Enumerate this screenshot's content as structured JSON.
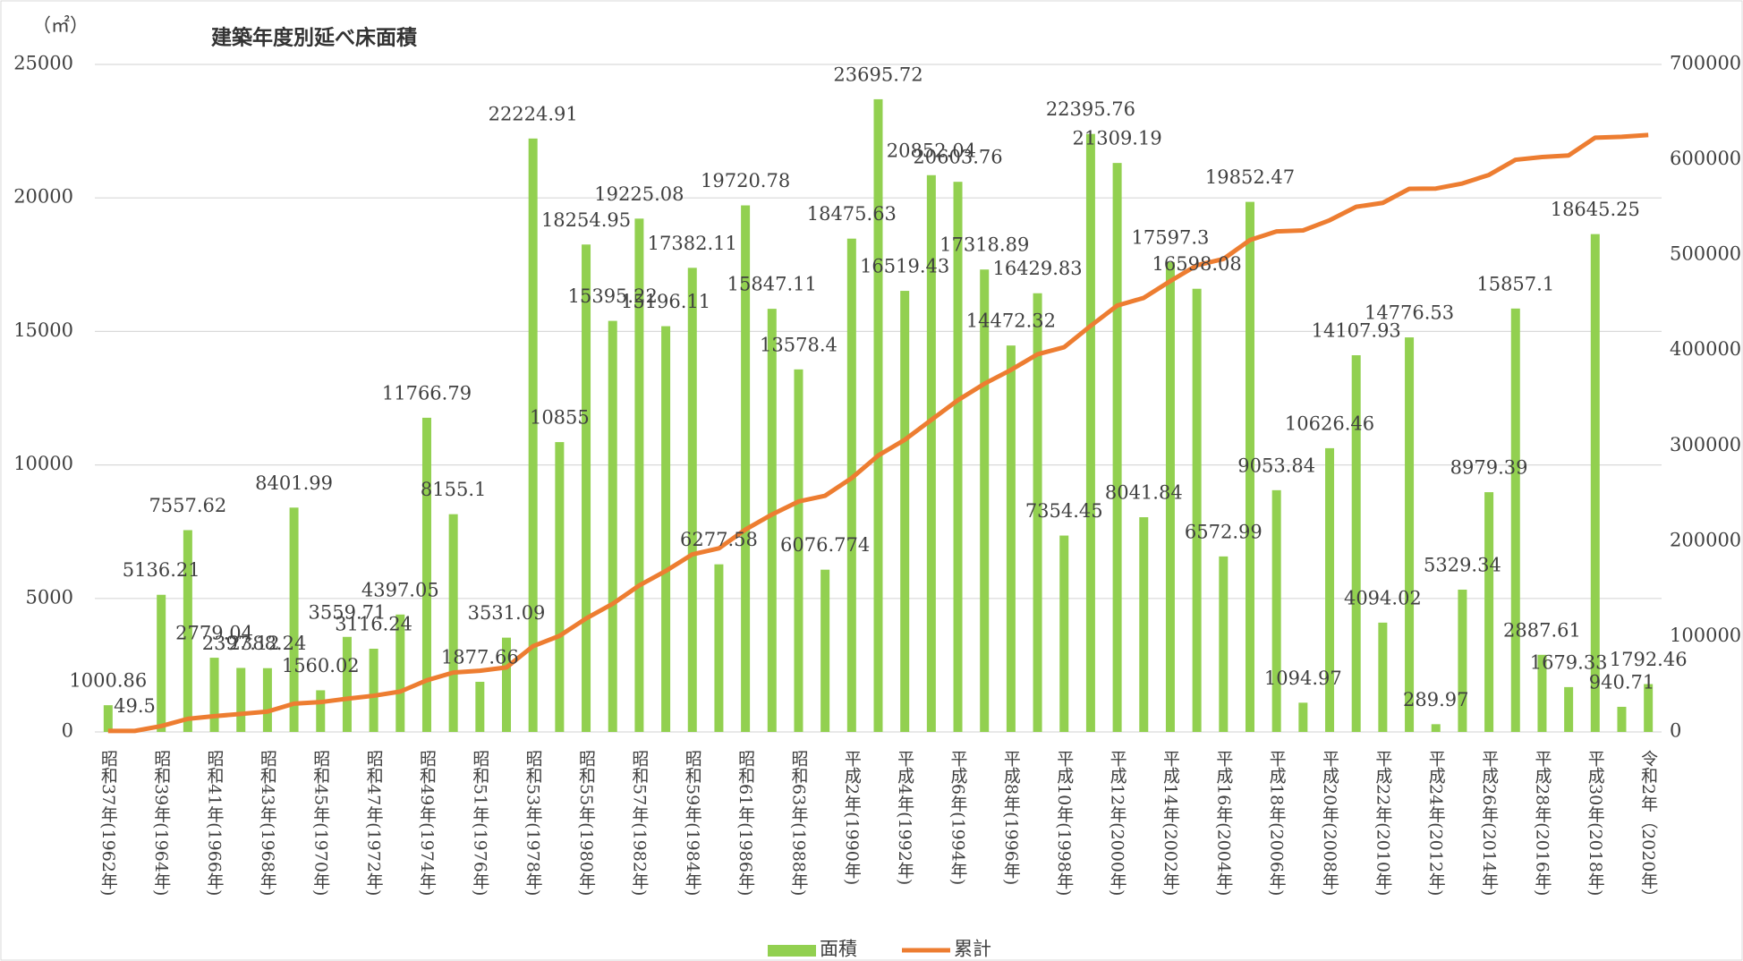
{
  "chart_data": {
    "type": "bar",
    "title": "建築年度別延べ床面積",
    "ylabel": "（㎡）",
    "categories": [
      "昭和37年(1962年)",
      null,
      "昭和39年(1964年)",
      null,
      "昭和41年(1966年)",
      null,
      "昭和43年(1968年)",
      null,
      "昭和45年(1970年)",
      null,
      "昭和47年(1972年)",
      null,
      "昭和49年(1974年)",
      null,
      "昭和51年(1976年)",
      null,
      "昭和53年(1978年)",
      null,
      "昭和55年(1980年)",
      null,
      "昭和57年(1982年)",
      null,
      "昭和59年(1984年)",
      null,
      "昭和61年(1986年)",
      null,
      "昭和63年(1988年)",
      null,
      "平成2年(1990年)",
      null,
      "平成4年(1992年)",
      null,
      "平成6年(1994年)",
      null,
      "平成8年(1996年)",
      null,
      "平成10年(1998年)",
      null,
      "平成12年(2000年)",
      null,
      "平成14年(2002年)",
      null,
      "平成16年(2004年)",
      null,
      "平成18年(2006年)",
      null,
      "平成20年(2008年)",
      null,
      "平成22年(2010年)",
      null,
      "平成24年(2012年)",
      null,
      "平成26年(2014年)",
      null,
      "平成28年(2016年)",
      null,
      "平成30年(2018年)",
      null,
      "令和2年（2020年）"
    ],
    "series": [
      {
        "name": "面積",
        "type": "bar",
        "color": "#92d050",
        "values": [
          1000.86,
          49.5,
          5136.21,
          7557.62,
          2779.04,
          2397.12,
          2388.24,
          8401.99,
          1560.02,
          3559.71,
          3116.24,
          4397.05,
          11766.79,
          8155.1,
          1877.66,
          3531.09,
          22224.91,
          10855,
          18254.95,
          15395.22,
          19225.08,
          15196.11,
          17382.11,
          6277.58,
          19720.78,
          15847.11,
          13578.4,
          6076.774,
          18475.63,
          23695.72,
          16519.43,
          20852.04,
          20603.76,
          17318.89,
          14472.32,
          16429.83,
          7354.45,
          22395.76,
          21309.19,
          8041.84,
          17597.3,
          16598.08,
          6572.99,
          19852.47,
          9053.84,
          1094.97,
          10626.46,
          14107.93,
          4094.02,
          14776.53,
          289.97,
          5329.34,
          8979.39,
          15857.1,
          2887.61,
          1679.33,
          18645.25,
          940.71,
          1792.46
        ]
      },
      {
        "name": "累計",
        "type": "line",
        "axis": "y2",
        "color": "#ed7d31",
        "values": [
          1001,
          1050,
          6187,
          13744,
          16523,
          18920,
          21309,
          29711,
          31271,
          34830,
          37947,
          42344,
          54110,
          62265,
          64143,
          67674,
          89899,
          100754,
          119009,
          134404,
          153629,
          168826,
          186208,
          192485,
          212206,
          228053,
          241631,
          247708,
          266184,
          289880,
          306399,
          327251,
          347855,
          365174,
          379646,
          396076,
          403430,
          425826,
          447135,
          455177,
          472774,
          489373,
          495945,
          515798,
          524852,
          525947,
          536573,
          550681,
          554775,
          569552,
          569842,
          575171,
          584150,
          600008,
          602895,
          604574,
          623220,
          624160,
          625953
        ]
      }
    ],
    "ylim": [
      0,
      25000
    ],
    "yticks": [
      0,
      5000,
      10000,
      15000,
      20000,
      25000
    ],
    "y2lim": [
      0,
      700000
    ],
    "y2ticks": [
      0,
      100000,
      200000,
      300000,
      400000,
      500000,
      600000,
      700000
    ],
    "grid": true
  }
}
